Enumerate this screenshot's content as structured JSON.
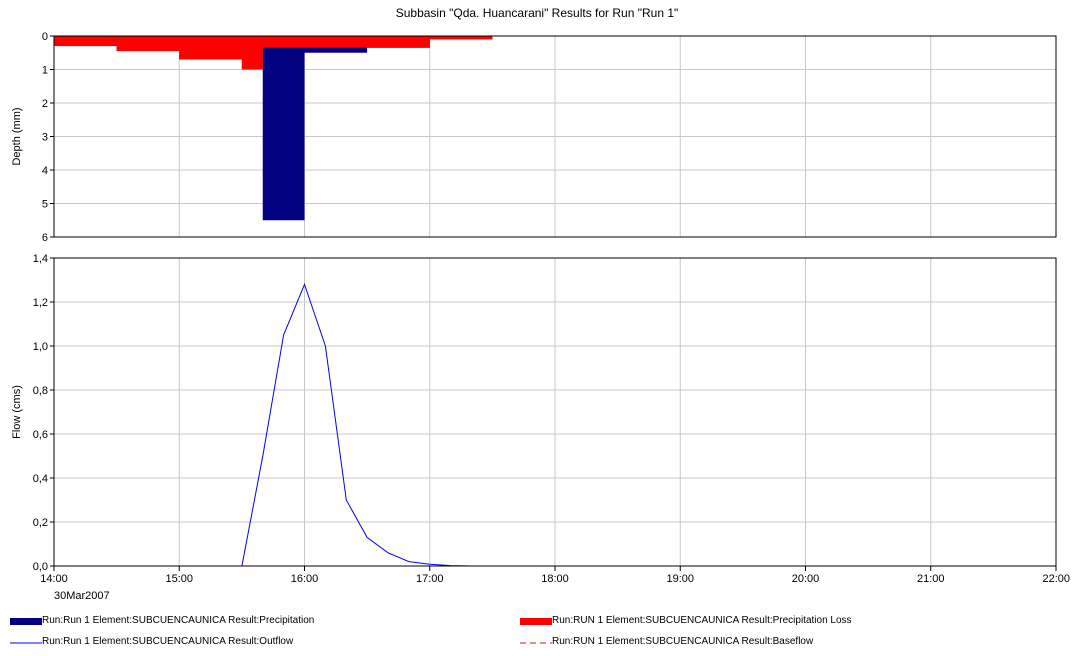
{
  "chart_data": [
    {
      "type": "bar",
      "title": "Subbasin \"Qda. Huancarani\" Results for Run \"Run 1\"",
      "ylabel": "Depth (mm)",
      "yaxis_reversed": true,
      "ylim": [
        0,
        6
      ],
      "yticks": [
        "0",
        "1",
        "2",
        "3",
        "4",
        "5",
        "6"
      ],
      "xlim": [
        "14:00",
        "22:00"
      ],
      "xticks": [
        "14:00",
        "15:00",
        "16:00",
        "17:00",
        "18:00",
        "19:00",
        "20:00",
        "21:00",
        "22:00"
      ],
      "date_label": "30Mar2007",
      "grid": true,
      "series": [
        {
          "name": "Run:Run 1 Element:SUBCUENCAUNICA Result:Precipitation",
          "color": "#000080",
          "steps": [
            {
              "start": "14:00",
              "end": "14:30",
              "value": 0.3
            },
            {
              "start": "14:30",
              "end": "15:00",
              "value": 0.45
            },
            {
              "start": "15:00",
              "end": "15:30",
              "value": 0.7
            },
            {
              "start": "15:30",
              "end": "15:40",
              "value": 1.0
            },
            {
              "start": "15:40",
              "end": "16:00",
              "value": 5.5
            },
            {
              "start": "16:00",
              "end": "16:30",
              "value": 0.5
            },
            {
              "start": "16:30",
              "end": "17:00",
              "value": 0.35
            },
            {
              "start": "17:00",
              "end": "17:30",
              "value": 0.1
            }
          ]
        },
        {
          "name": "Run:RUN 1 Element:SUBCUENCAUNICA Result:Precipitation Loss",
          "color": "#ff0000",
          "steps": [
            {
              "start": "14:00",
              "end": "14:30",
              "value": 0.3
            },
            {
              "start": "14:30",
              "end": "15:00",
              "value": 0.45
            },
            {
              "start": "15:00",
              "end": "15:30",
              "value": 0.7
            },
            {
              "start": "15:30",
              "end": "15:40",
              "value": 1.0
            },
            {
              "start": "15:40",
              "end": "16:00",
              "value": 0.35
            },
            {
              "start": "16:00",
              "end": "16:30",
              "value": 0.35
            },
            {
              "start": "16:30",
              "end": "17:00",
              "value": 0.35
            },
            {
              "start": "17:00",
              "end": "17:30",
              "value": 0.1
            }
          ]
        }
      ]
    },
    {
      "type": "line",
      "ylabel": "Flow (cms)",
      "ylim": [
        0,
        1.4
      ],
      "yticks": [
        "0,0",
        "0,2",
        "0,4",
        "0,6",
        "0,8",
        "1,0",
        "1,2",
        "1,4"
      ],
      "xlim": [
        "14:00",
        "22:00"
      ],
      "xticks": [
        "14:00",
        "15:00",
        "16:00",
        "17:00",
        "18:00",
        "19:00",
        "20:00",
        "21:00",
        "22:00"
      ],
      "grid": true,
      "series": [
        {
          "name": "Run:Run 1 Element:SUBCUENCAUNICA Result:Outflow",
          "color": "#0000ff",
          "points": [
            [
              "14:00",
              0
            ],
            [
              "15:30",
              0
            ],
            [
              "15:40",
              0.5
            ],
            [
              "15:50",
              1.05
            ],
            [
              "16:00",
              1.28
            ],
            [
              "16:10",
              1.0
            ],
            [
              "16:20",
              0.3
            ],
            [
              "16:30",
              0.13
            ],
            [
              "16:40",
              0.06
            ],
            [
              "16:50",
              0.02
            ],
            [
              "17:00",
              0.008
            ],
            [
              "17:10",
              0.002
            ],
            [
              "17:20",
              0
            ],
            [
              "22:00",
              0
            ]
          ]
        },
        {
          "name": "Run:RUN 1 Element:SUBCUENCAUNICA Result:Baseflow",
          "color": "#b22222",
          "dashed": true,
          "points": [
            [
              "14:00",
              0
            ],
            [
              "22:00",
              0
            ]
          ]
        }
      ]
    }
  ]
}
